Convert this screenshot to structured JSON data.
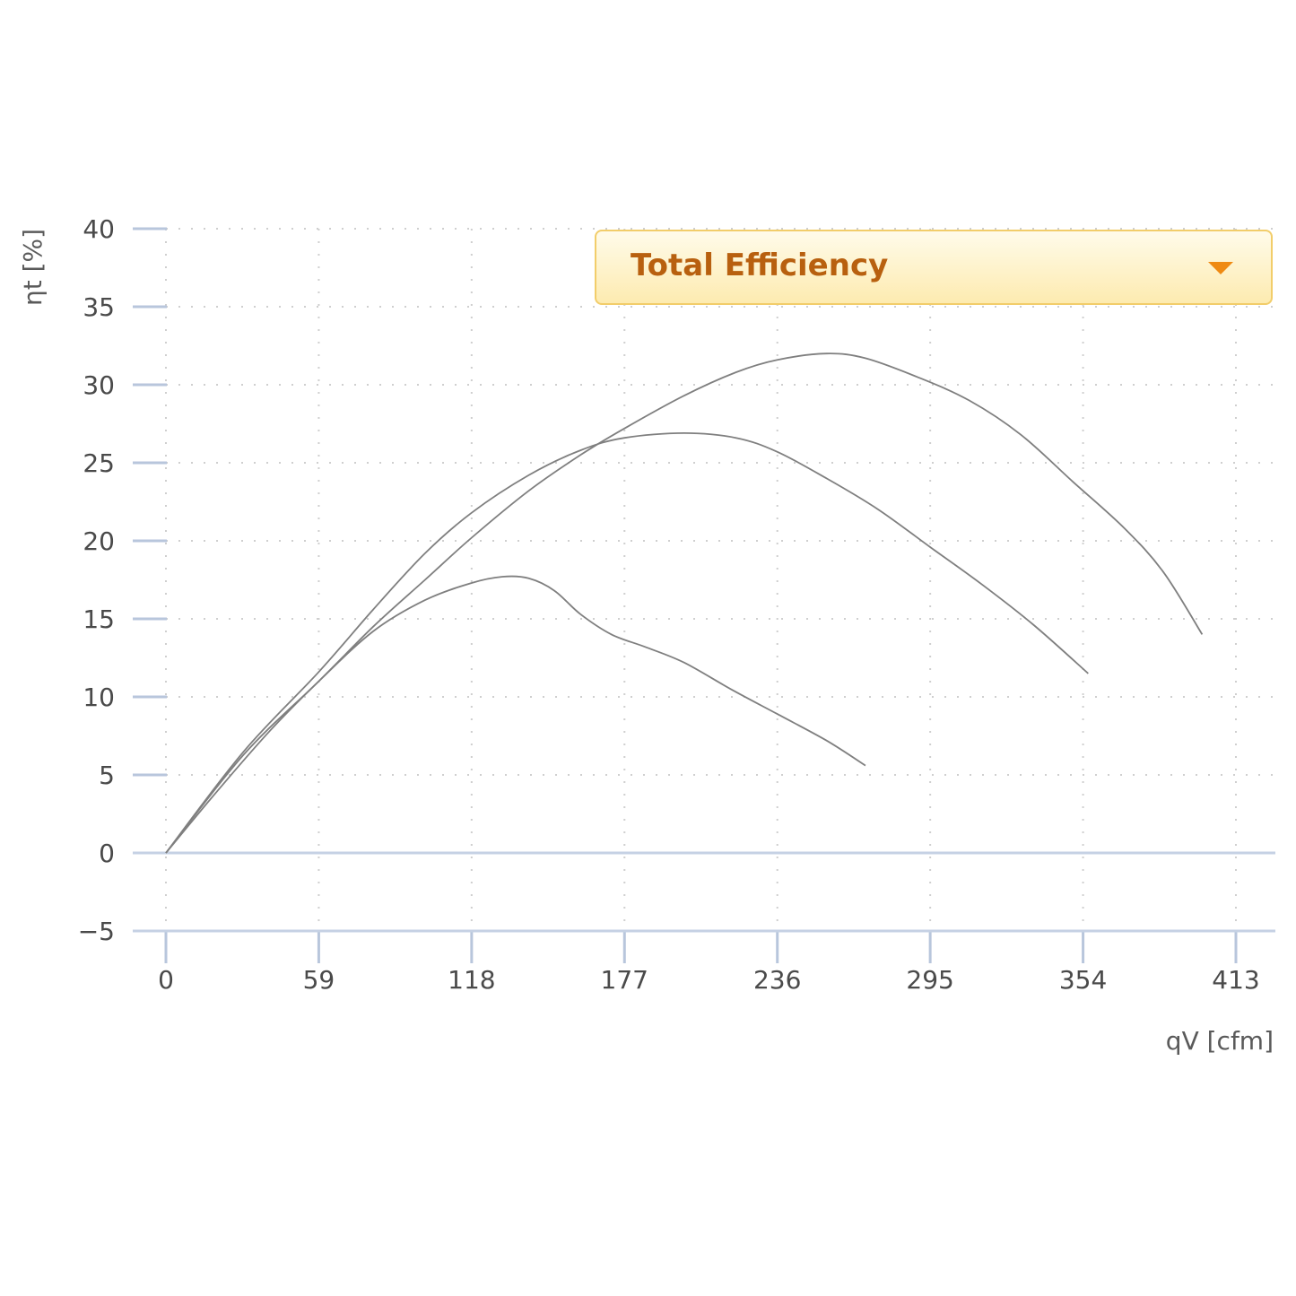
{
  "selector": {
    "label": "Total Efficiency",
    "icon": "chevron-down-icon",
    "accent_color": "#ef8a13"
  },
  "chart_data": {
    "type": "line",
    "title": "",
    "xlabel": "qV [cfm]",
    "ylabel": "ηt [%]",
    "xlim": [
      0,
      413
    ],
    "ylim": [
      -5,
      40
    ],
    "x_ticks": [
      0,
      59,
      118,
      177,
      236,
      295,
      354,
      413
    ],
    "y_ticks": [
      -5,
      0,
      5,
      10,
      15,
      20,
      25,
      30,
      35,
      40
    ],
    "grid": true,
    "series": [
      {
        "points": [
          [
            0,
            0
          ],
          [
            20,
            4
          ],
          [
            40,
            7.8
          ],
          [
            59,
            11
          ],
          [
            80,
            14.2
          ],
          [
            100,
            16.2
          ],
          [
            118,
            17.3
          ],
          [
            130,
            17.7
          ],
          [
            140,
            17.6
          ],
          [
            150,
            16.8
          ],
          [
            160,
            15.3
          ],
          [
            172,
            14
          ],
          [
            185,
            13.2
          ],
          [
            200,
            12.2
          ],
          [
            218,
            10.5
          ],
          [
            236,
            8.9
          ],
          [
            255,
            7.2
          ],
          [
            270,
            5.6
          ]
        ]
      },
      {
        "points": [
          [
            0,
            0
          ],
          [
            30,
            6.5
          ],
          [
            59,
            11.6
          ],
          [
            80,
            15.6
          ],
          [
            100,
            19.2
          ],
          [
            118,
            21.8
          ],
          [
            140,
            24.2
          ],
          [
            160,
            25.8
          ],
          [
            177,
            26.6
          ],
          [
            200,
            26.9
          ],
          [
            220,
            26.6
          ],
          [
            236,
            25.7
          ],
          [
            255,
            24
          ],
          [
            275,
            22
          ],
          [
            295,
            19.6
          ],
          [
            315,
            17.2
          ],
          [
            335,
            14.6
          ],
          [
            356,
            11.5
          ]
        ]
      },
      {
        "points": [
          [
            0,
            0
          ],
          [
            30,
            6.3
          ],
          [
            59,
            11
          ],
          [
            80,
            14.5
          ],
          [
            100,
            17.5
          ],
          [
            118,
            20.2
          ],
          [
            140,
            23.2
          ],
          [
            160,
            25.5
          ],
          [
            177,
            27.2
          ],
          [
            200,
            29.3
          ],
          [
            220,
            30.8
          ],
          [
            236,
            31.6
          ],
          [
            255,
            32
          ],
          [
            270,
            31.7
          ],
          [
            290,
            30.5
          ],
          [
            310,
            29
          ],
          [
            330,
            26.8
          ],
          [
            350,
            23.8
          ],
          [
            370,
            20.8
          ],
          [
            385,
            18
          ],
          [
            400,
            14
          ]
        ]
      }
    ]
  }
}
